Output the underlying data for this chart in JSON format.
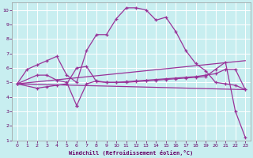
{
  "background_color": "#c8eef0",
  "grid_color": "#ffffff",
  "line_color": "#993399",
  "xlabel": "Windchill (Refroidissement éolien,°C)",
  "xlim": [
    -0.5,
    23.5
  ],
  "ylim": [
    1,
    10.5
  ],
  "xticks": [
    0,
    1,
    2,
    3,
    4,
    5,
    6,
    7,
    8,
    9,
    10,
    11,
    12,
    13,
    14,
    15,
    16,
    17,
    18,
    19,
    20,
    21,
    22,
    23
  ],
  "yticks": [
    1,
    2,
    3,
    4,
    5,
    6,
    7,
    8,
    9,
    10
  ],
  "curve1_x": [
    0,
    1,
    2,
    3,
    4,
    5,
    6,
    7,
    8,
    9,
    10,
    11,
    12,
    13,
    14,
    15,
    16,
    17,
    18,
    19,
    20,
    21,
    22,
    23
  ],
  "curve1_y": [
    4.9,
    5.9,
    6.2,
    6.5,
    6.8,
    5.5,
    5.0,
    7.2,
    8.3,
    8.3,
    9.4,
    10.15,
    10.15,
    10.0,
    9.3,
    9.5,
    8.5,
    7.2,
    6.3,
    5.8,
    5.0,
    4.9,
    4.8,
    4.5
  ],
  "curve2_x": [
    0,
    2,
    3,
    4,
    5,
    6,
    6,
    7,
    8,
    9,
    10,
    11,
    12,
    13,
    14,
    15,
    16,
    17,
    18,
    19,
    20,
    21,
    22,
    23
  ],
  "curve2_y": [
    4.9,
    5.5,
    5.5,
    5.15,
    5.0,
    3.4,
    3.4,
    4.9,
    5.1,
    5.0,
    5.0,
    5.05,
    5.1,
    5.15,
    5.2,
    5.25,
    5.3,
    5.35,
    5.4,
    5.5,
    5.6,
    5.9,
    5.9,
    4.5
  ],
  "curve3_x": [
    0,
    2,
    3,
    4,
    5,
    6,
    7,
    8,
    9,
    10,
    11,
    12,
    13,
    14,
    15,
    16,
    17,
    18,
    19,
    20,
    21,
    22,
    23
  ],
  "curve3_y": [
    4.9,
    4.6,
    4.7,
    4.8,
    4.9,
    6.0,
    6.1,
    5.05,
    5.0,
    5.0,
    5.0,
    5.05,
    5.1,
    5.15,
    5.2,
    5.25,
    5.3,
    5.35,
    5.4,
    5.9,
    6.4,
    3.0,
    1.2
  ],
  "curve4_x": [
    0,
    23
  ],
  "curve4_y": [
    4.9,
    4.5
  ],
  "curve5_x": [
    0,
    23
  ],
  "curve5_y": [
    4.9,
    6.5
  ]
}
